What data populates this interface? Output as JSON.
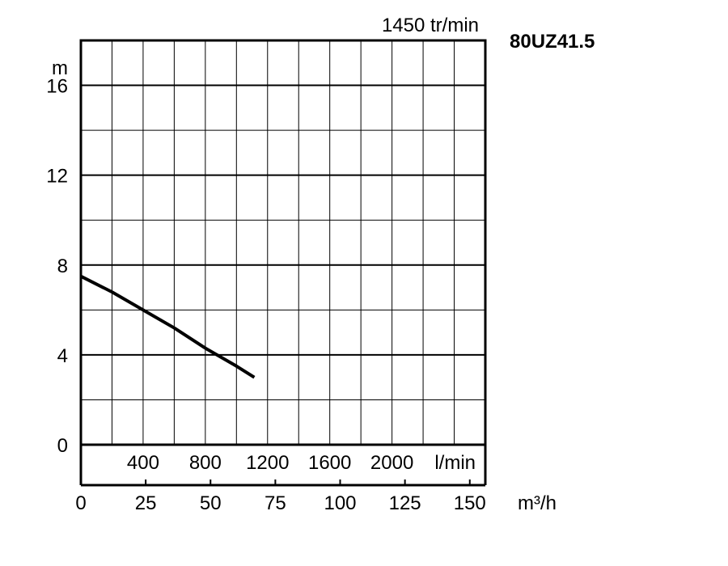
{
  "chart_data": {
    "type": "line",
    "title": "1450 tr/min",
    "model": "80UZ41.5",
    "ylabel": "m",
    "ylim": [
      0,
      18
    ],
    "yticks": [
      0,
      4,
      8,
      12,
      16
    ],
    "xlim_lmin": [
      0,
      2600
    ],
    "xticks_lmin": [
      400,
      800,
      1200,
      1600,
      2000
    ],
    "xunit_lmin": "l/min",
    "xlim_m3h": [
      0,
      156
    ],
    "xticks_m3h": [
      0,
      25,
      50,
      75,
      100,
      125,
      150
    ],
    "xunit_m3h": "m³/h",
    "grid": true,
    "series": [
      {
        "color": "#000000",
        "x_lmin": [
          0,
          200,
          400,
          600,
          800,
          1000,
          1115
        ],
        "y": [
          7.5,
          6.8,
          6.0,
          5.2,
          4.3,
          3.5,
          3.0
        ]
      }
    ]
  }
}
